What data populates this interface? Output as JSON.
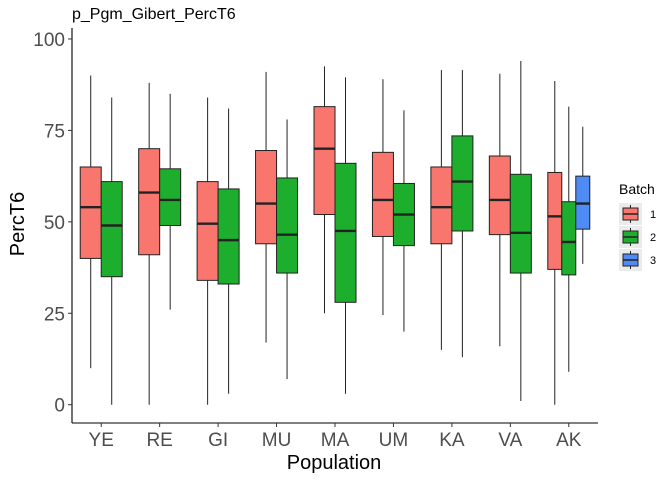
{
  "chart_data": {
    "type": "box",
    "title": "p_Pgm_Gibert_PercT6",
    "xlabel": "Population",
    "ylabel": "PercT6",
    "ylim": [
      -5,
      103
    ],
    "yticks": [
      0,
      25,
      50,
      75,
      100
    ],
    "grid": false,
    "legend": {
      "title": "Batch",
      "position": "right",
      "entries": [
        {
          "name": "1",
          "color": "#F8766D"
        },
        {
          "name": "2",
          "color": "#1EAE2E"
        },
        {
          "name": "3",
          "color": "#4F8BF5"
        }
      ]
    },
    "categories": [
      "YE",
      "RE",
      "GI",
      "MU",
      "MA",
      "UM",
      "KA",
      "VA",
      "AK"
    ],
    "boxes": [
      {
        "category": "YE",
        "batch": "1",
        "min": 10,
        "q1": 40,
        "median": 54,
        "q3": 65,
        "max": 90
      },
      {
        "category": "YE",
        "batch": "2",
        "min": 0,
        "q1": 35,
        "median": 49,
        "q3": 61,
        "max": 84
      },
      {
        "category": "RE",
        "batch": "1",
        "min": 0,
        "q1": 41,
        "median": 58,
        "q3": 70,
        "max": 88
      },
      {
        "category": "RE",
        "batch": "2",
        "min": 26,
        "q1": 49,
        "median": 56,
        "q3": 64.5,
        "max": 85
      },
      {
        "category": "GI",
        "batch": "1",
        "min": 0,
        "q1": 34,
        "median": 49.5,
        "q3": 61,
        "max": 84
      },
      {
        "category": "GI",
        "batch": "2",
        "min": 3,
        "q1": 33,
        "median": 45,
        "q3": 59,
        "max": 81
      },
      {
        "category": "MU",
        "batch": "1",
        "min": 17,
        "q1": 44,
        "median": 55,
        "q3": 69.5,
        "max": 91
      },
      {
        "category": "MU",
        "batch": "2",
        "min": 7,
        "q1": 36,
        "median": 46.5,
        "q3": 62,
        "max": 78
      },
      {
        "category": "MA",
        "batch": "1",
        "min": 25,
        "q1": 52,
        "median": 70,
        "q3": 81.5,
        "max": 92.5
      },
      {
        "category": "MA",
        "batch": "2",
        "min": 3,
        "q1": 28,
        "median": 47.5,
        "q3": 66,
        "max": 89.5
      },
      {
        "category": "UM",
        "batch": "1",
        "min": 24.5,
        "q1": 46,
        "median": 56,
        "q3": 69,
        "max": 89
      },
      {
        "category": "UM",
        "batch": "2",
        "min": 20,
        "q1": 43.5,
        "median": 52,
        "q3": 60.5,
        "max": 80.5
      },
      {
        "category": "KA",
        "batch": "1",
        "min": 15,
        "q1": 44,
        "median": 54,
        "q3": 65,
        "max": 91.5
      },
      {
        "category": "KA",
        "batch": "2",
        "min": 13,
        "q1": 47.5,
        "median": 61,
        "q3": 73.5,
        "max": 91.5
      },
      {
        "category": "VA",
        "batch": "1",
        "min": 16,
        "q1": 46.5,
        "median": 56,
        "q3": 68,
        "max": 90.5
      },
      {
        "category": "VA",
        "batch": "2",
        "min": 1,
        "q1": 36,
        "median": 47,
        "q3": 63,
        "max": 94
      },
      {
        "category": "AK",
        "batch": "1",
        "min": 0,
        "q1": 37,
        "median": 51.5,
        "q3": 63.5,
        "max": 88.5
      },
      {
        "category": "AK",
        "batch": "2",
        "min": 9,
        "q1": 35.5,
        "median": 44.5,
        "q3": 55.5,
        "max": 81.5
      },
      {
        "category": "AK",
        "batch": "3",
        "min": 38.5,
        "q1": 48,
        "median": 55,
        "q3": 62.5,
        "max": 76
      }
    ]
  }
}
